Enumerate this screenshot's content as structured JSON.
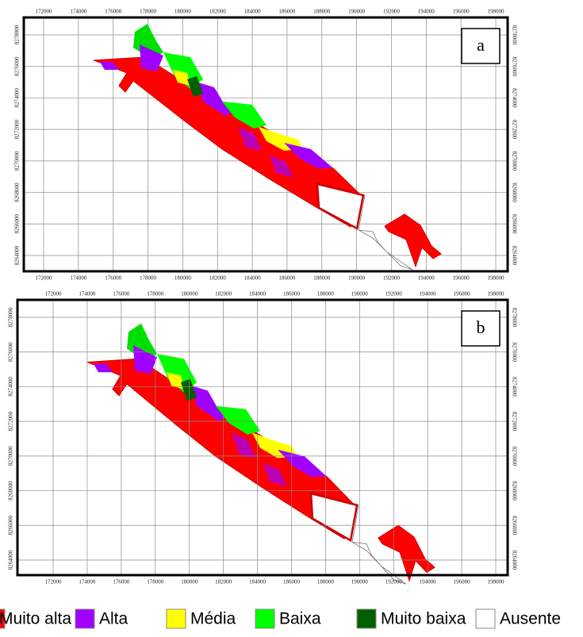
{
  "panels": [
    {
      "label": "a",
      "xticks": [
        172000,
        174000,
        176000,
        178000,
        180000,
        182000,
        184000,
        186000,
        188000,
        190000,
        192000,
        194000,
        196000,
        198000
      ],
      "yticks": [
        8264000,
        8266000,
        8268000,
        8270000,
        8272000,
        8274000,
        8276000,
        8278000
      ]
    },
    {
      "label": "b",
      "xticks": [
        172000,
        174000,
        176000,
        178000,
        180000,
        182000,
        184000,
        186000,
        188000,
        190000,
        192000,
        194000,
        196000,
        198000
      ],
      "yticks": [
        8264000,
        8266000,
        8268000,
        8270000,
        8272000,
        8274000,
        8276000,
        8278000
      ]
    }
  ],
  "legend": [
    {
      "label": "Muito alta",
      "color": "#ff0000"
    },
    {
      "label": "Alta",
      "color": "#a000ff"
    },
    {
      "label": "Média",
      "color": "#ffff00"
    },
    {
      "label": "Baixa",
      "color": "#00ff00"
    },
    {
      "label": "Muito baixa",
      "color": "#006000"
    },
    {
      "label": "Ausente",
      "color": "#ffffff"
    }
  ]
}
